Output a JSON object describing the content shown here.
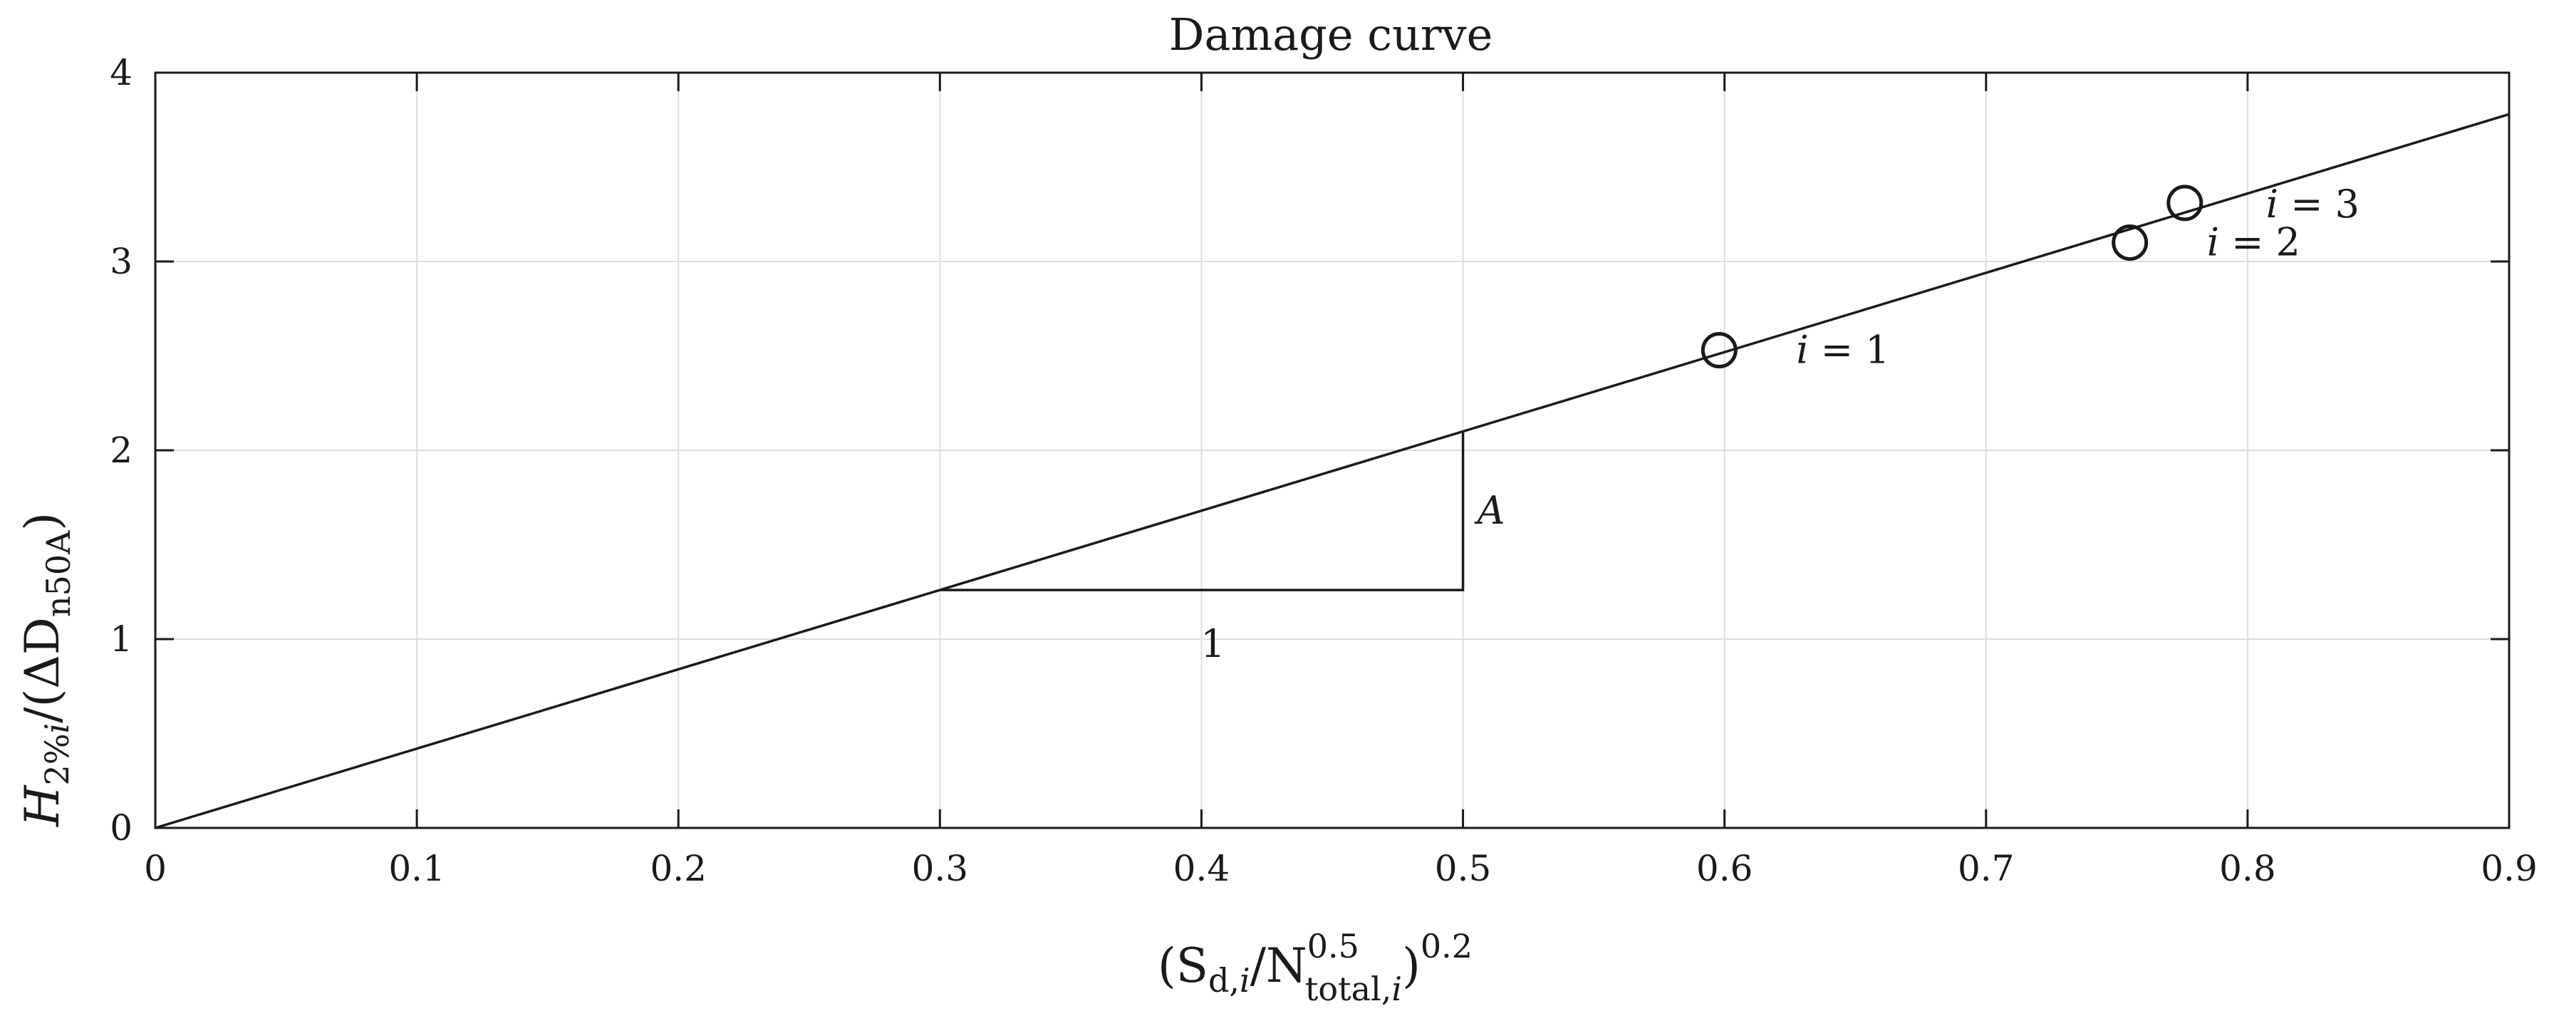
{
  "chart_data": {
    "type": "line",
    "title": "Damage curve",
    "xlabel": {
      "open": "(S",
      "sub1": "d,",
      "sub1_i": "i",
      "slash": "/N",
      "sup": "0.5",
      "sub2": "total,",
      "sub2_i": "i",
      "close": ")",
      "exp": "0.2"
    },
    "ylabel": {
      "h": "H",
      "sub": "2%",
      "sub_i": "i",
      "mid": "/(ΔD",
      "sub2": "n50A",
      "close": ")"
    },
    "xlim": [
      0,
      0.9
    ],
    "ylim": [
      0,
      4
    ],
    "x_ticks": [
      0,
      0.1,
      0.2,
      0.3,
      0.4,
      0.5,
      0.6,
      0.7,
      0.8,
      0.9
    ],
    "x_tick_labels": [
      "0",
      "0.1",
      "0.2",
      "0.3",
      "0.4",
      "0.5",
      "0.6",
      "0.7",
      "0.8",
      "0.9"
    ],
    "y_ticks": [
      0,
      1,
      2,
      3,
      4
    ],
    "y_tick_labels": [
      "0",
      "1",
      "2",
      "3",
      "4"
    ],
    "grid": true,
    "line": {
      "x": [
        0,
        0.9
      ],
      "y": [
        0,
        3.78
      ],
      "slope": 4.2
    },
    "slope_triangle": {
      "x0": 0.3,
      "x1": 0.5,
      "y0": 1.26,
      "y1": 2.1,
      "run_label": "1",
      "rise_label": "A"
    },
    "points": [
      {
        "x": 0.598,
        "y": 2.53,
        "label_i": "i",
        "label_rest": " = 1"
      },
      {
        "x": 0.755,
        "y": 3.1,
        "label_i": "i",
        "label_rest": " = 2"
      },
      {
        "x": 0.776,
        "y": 3.31,
        "label_i": "i",
        "label_rest": " = 3"
      }
    ]
  },
  "colors": {
    "line": "#1a1a1a",
    "grid": "#dcdcdc",
    "axis": "#1a1a1a",
    "background": "#ffffff"
  }
}
